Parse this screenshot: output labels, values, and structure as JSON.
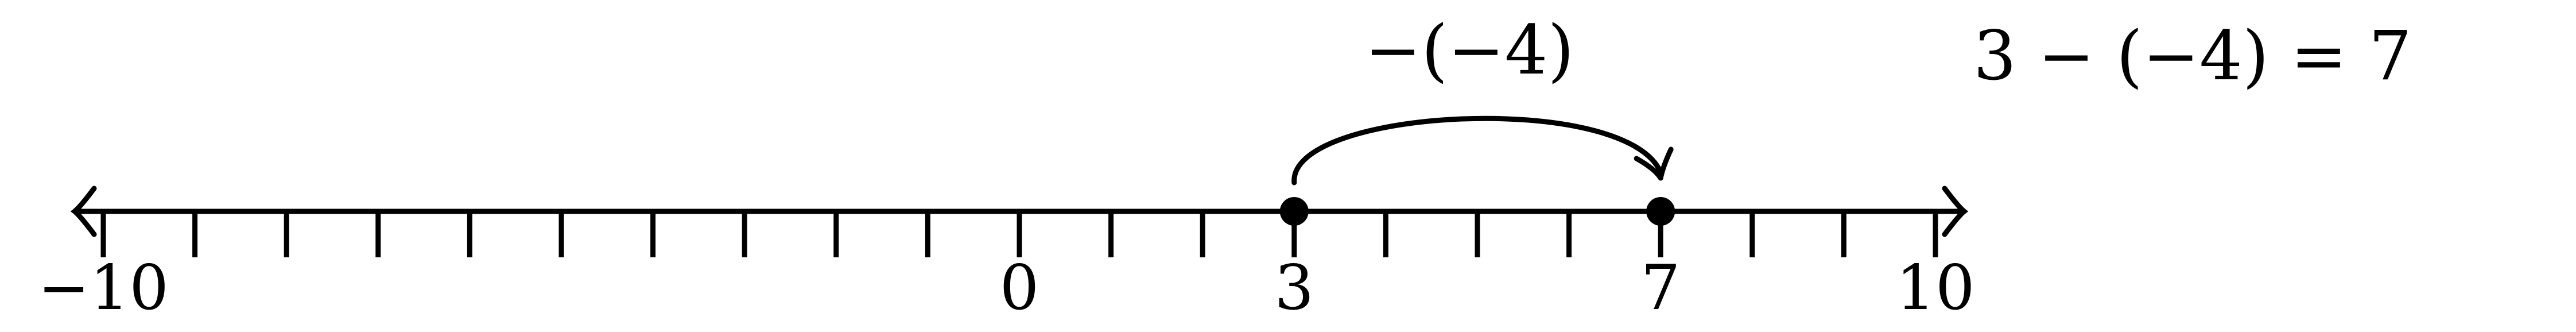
{
  "number_line": {
    "min": -10,
    "max": 10,
    "tick_step": 1,
    "tick_labels": [
      {
        "value": -10,
        "text": "−10"
      },
      {
        "value": 0,
        "text": "0"
      },
      {
        "value": 3,
        "text": "3"
      },
      {
        "value": 7,
        "text": "7"
      },
      {
        "value": 10,
        "text": "10"
      }
    ],
    "points": [
      3,
      7
    ],
    "arrows_both_ends": true
  },
  "jump": {
    "from": 3,
    "to": 7,
    "label": "−(−4)"
  },
  "equation": "3 − (−4) = 7",
  "colors": {
    "ink": "#000000",
    "background": "#ffffff"
  }
}
